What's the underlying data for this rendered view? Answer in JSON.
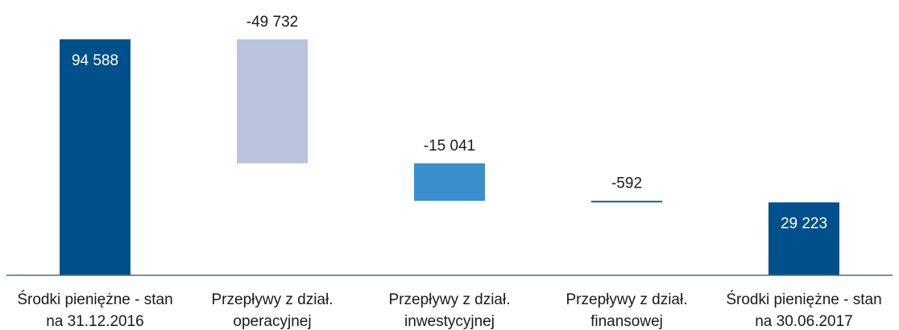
{
  "chart_data": {
    "type": "waterfall",
    "categories": [
      [
        "Środki pieniężne - stan",
        "na 31.12.2016"
      ],
      [
        "Przepływy z dział.",
        "operacyjnej"
      ],
      [
        "Przepływy z dział.",
        "inwestycyjnej"
      ],
      [
        "Przepływy z dział.",
        "finansowej"
      ],
      [
        "Środki pieniężne - stan",
        "na 30.06.2017"
      ]
    ],
    "values": [
      94588,
      -49732,
      -15041,
      -592,
      29223
    ],
    "value_labels": [
      "94 588",
      "-49 732",
      "-15 041",
      "-592",
      "29 223"
    ],
    "kinds": [
      "total",
      "delta",
      "delta",
      "delta",
      "total"
    ],
    "colors": [
      "#00508C",
      "#B8C5DD",
      "#3A8FCC",
      "#00508C",
      "#00508C"
    ],
    "label_inside": [
      true,
      false,
      false,
      false,
      true
    ],
    "ylim": [
      0,
      100000
    ],
    "grid": false,
    "baseline_color": "#4A6A84"
  }
}
